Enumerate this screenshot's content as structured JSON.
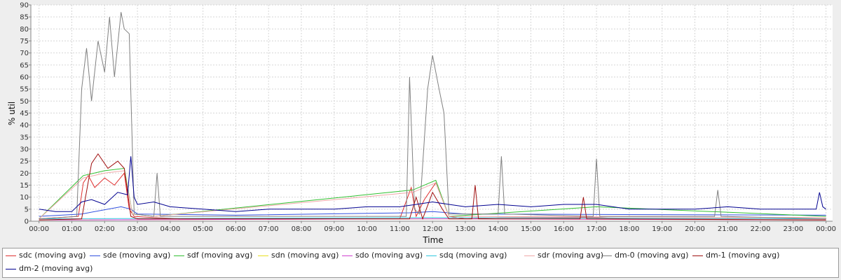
{
  "chart_data": {
    "type": "line",
    "xlabel": "Time",
    "ylabel": "% util",
    "ylim": [
      0,
      90
    ],
    "yticks": [
      0,
      5,
      10,
      15,
      20,
      25,
      30,
      35,
      40,
      45,
      50,
      55,
      60,
      65,
      70,
      75,
      80,
      85,
      90
    ],
    "xlim_hours": [
      -0.25,
      24.2
    ],
    "xticks": [
      "00:00",
      "01:00",
      "02:00",
      "03:00",
      "04:00",
      "05:00",
      "06:00",
      "07:00",
      "08:00",
      "09:00",
      "10:00",
      "11:00",
      "12:00",
      "13:00",
      "14:00",
      "15:00",
      "16:00",
      "17:00",
      "18:00",
      "19:00",
      "20:00",
      "21:00",
      "22:00",
      "23:00",
      "00:00"
    ],
    "grid": true,
    "legend_position": "bottom",
    "series": [
      {
        "name": "sdc (moving avg)",
        "color": "#e03030",
        "x": [
          0,
          1.2,
          1.35,
          1.5,
          1.7,
          2.0,
          2.3,
          2.6,
          2.75,
          2.9,
          3.5,
          4.5,
          11.0,
          11.35,
          11.5,
          11.75,
          12.1,
          12.3,
          12.5,
          13.0,
          14.0,
          16.0,
          17.0,
          18.0,
          24.0
        ],
        "y": [
          1,
          2,
          16,
          19,
          14,
          18,
          15,
          20,
          5,
          2,
          1.5,
          1,
          1,
          14,
          2,
          9,
          16,
          9,
          2,
          1,
          1.5,
          1.5,
          1.5,
          1,
          1
        ]
      },
      {
        "name": "sde (moving avg)",
        "color": "#3050e0",
        "x": [
          0,
          1.3,
          2.5,
          2.8,
          3.0,
          6.0,
          11.3,
          12.0,
          13.0,
          24.0
        ],
        "y": [
          2,
          3,
          6,
          5,
          3,
          2.5,
          3.5,
          4,
          3,
          2.5
        ]
      },
      {
        "name": "sdf (moving avg)",
        "color": "#30c030",
        "x": [
          0,
          1.35,
          2.0,
          2.6,
          2.85,
          3.5,
          11.4,
          12.1,
          12.5,
          17.0,
          24.0
        ],
        "y": [
          1,
          19,
          21,
          22,
          3,
          2,
          13,
          17,
          2,
          6,
          2
        ]
      },
      {
        "name": "sdn (moving avg)",
        "color": "#e8e020",
        "x": [
          0,
          12.0,
          24.0
        ],
        "y": [
          0.5,
          1,
          0.5
        ]
      },
      {
        "name": "sdo (moving avg)",
        "color": "#d040d0",
        "x": [
          0,
          12.0,
          24.0
        ],
        "y": [
          0.5,
          1,
          0.5
        ]
      },
      {
        "name": "sdq (moving avg)",
        "color": "#30c8e0",
        "x": [
          0,
          12.0,
          24.0
        ],
        "y": [
          1,
          1.5,
          1
        ]
      },
      {
        "name": "sdr (moving avg)",
        "color": "#f0a8a8",
        "x": [
          0,
          1.35,
          2.0,
          2.6,
          2.85,
          3.5,
          11.4,
          12.1,
          12.5,
          24.0
        ],
        "y": [
          1,
          18,
          20,
          21,
          3,
          2,
          12,
          16,
          2,
          1.5
        ]
      },
      {
        "name": "dm-0 (moving avg)",
        "color": "#808080",
        "x": [
          0,
          1.15,
          1.3,
          1.45,
          1.6,
          1.8,
          2.0,
          2.15,
          2.3,
          2.5,
          2.6,
          2.75,
          2.9,
          3.5,
          3.6,
          3.7,
          11.2,
          11.3,
          11.45,
          11.6,
          11.85,
          12.0,
          12.2,
          12.35,
          12.5,
          14.0,
          14.1,
          14.2,
          16.9,
          17.0,
          17.1,
          20.6,
          20.7,
          20.8,
          24.0
        ],
        "y": [
          1,
          2,
          55,
          72,
          50,
          75,
          62,
          85,
          60,
          87,
          80,
          78,
          3,
          2,
          20,
          2,
          2,
          60,
          5,
          3,
          55,
          69,
          55,
          45,
          3,
          3,
          27,
          3,
          2,
          26,
          2,
          2,
          13,
          2,
          1
        ]
      },
      {
        "name": "dm-1 (moving avg)",
        "color": "#a01010",
        "x": [
          0,
          1.3,
          1.6,
          1.8,
          2.1,
          2.4,
          2.6,
          2.8,
          3.0,
          11.3,
          11.5,
          11.7,
          12.0,
          12.3,
          12.5,
          13.2,
          13.3,
          13.4,
          16.5,
          16.6,
          16.7,
          24.0
        ],
        "y": [
          0.5,
          1,
          24,
          28,
          22,
          25,
          22,
          2,
          1,
          1,
          10,
          1,
          12,
          5,
          1,
          1,
          15,
          1,
          1,
          10,
          1,
          0.5
        ]
      },
      {
        "name": "dm-2 (moving avg)",
        "color": "#000090",
        "x": [
          0,
          0.5,
          1.0,
          1.3,
          1.6,
          2.0,
          2.4,
          2.7,
          2.8,
          2.9,
          3.0,
          3.5,
          4.0,
          5.0,
          6.0,
          7.0,
          8.0,
          9.0,
          10.0,
          11.0,
          11.5,
          12.0,
          12.5,
          13.0,
          14.0,
          15.0,
          16.0,
          17.0,
          18.0,
          19.0,
          20.0,
          21.0,
          22.0,
          23.0,
          23.7,
          23.8,
          23.9,
          24.0
        ],
        "y": [
          5,
          4,
          4,
          8,
          9,
          7,
          12,
          11,
          27,
          10,
          7,
          8,
          6,
          5,
          4,
          5,
          5,
          5,
          6,
          6,
          7,
          8,
          7,
          6,
          7,
          6,
          7,
          7,
          5,
          5,
          5,
          6,
          5,
          5,
          5,
          12,
          6,
          5
        ]
      }
    ]
  }
}
